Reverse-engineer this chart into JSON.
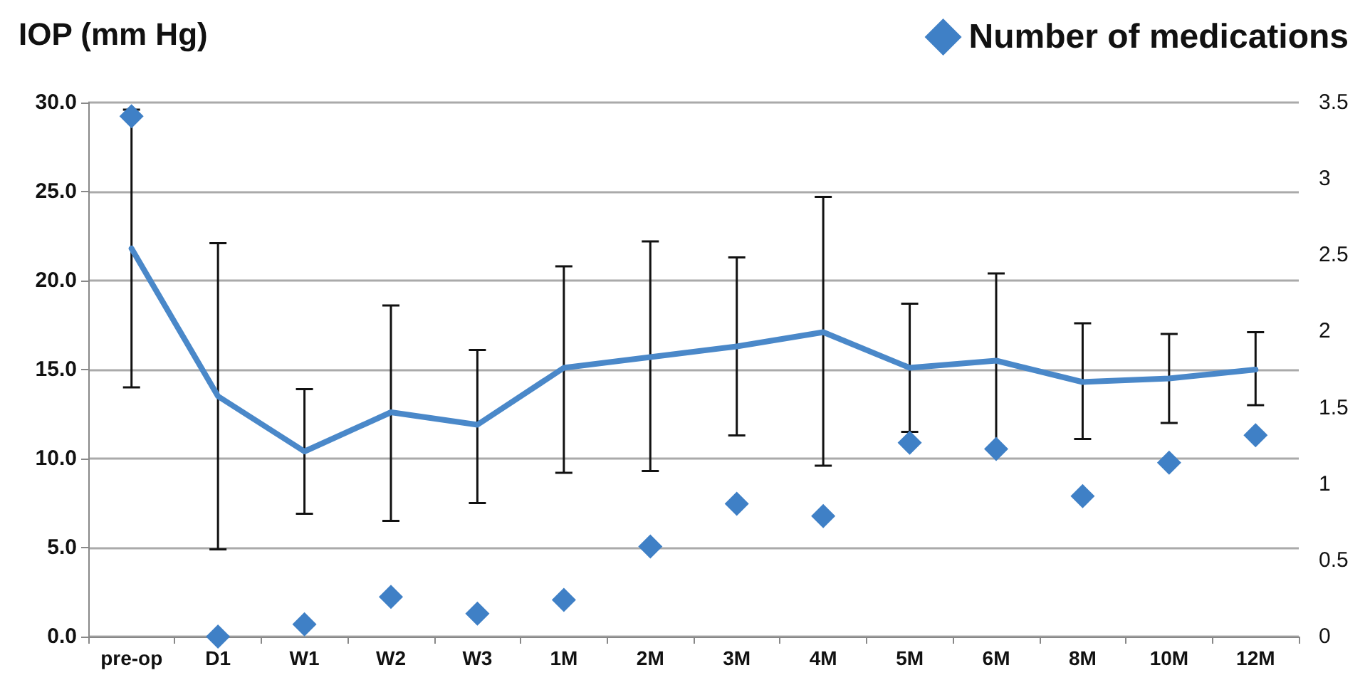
{
  "chart_data": {
    "type": "line",
    "ylabel": "IOP (mm Hg)",
    "categories": [
      "pre-op",
      "D1",
      "W1",
      "W2",
      "W3",
      "1M",
      "2M",
      "3M",
      "4M",
      "5M",
      "6M",
      "8M",
      "10M",
      "12M"
    ],
    "series": [
      {
        "color": "#4a88c9",
        "marker": "none",
        "line_style": "solid",
        "values": [
          21.8,
          13.5,
          10.4,
          12.6,
          11.9,
          15.1,
          15.7,
          16.3,
          17.1,
          15.1,
          15.5,
          14.3,
          14.5,
          15.0
        ],
        "errors": [
          7.8,
          [
            4.9,
            22.1
          ],
          [
            6.9,
            13.9
          ],
          [
            6.5,
            18.6
          ],
          [
            7.5,
            16.1
          ],
          [
            9.2,
            20.8
          ],
          [
            9.3,
            22.2
          ],
          [
            11.3,
            21.3
          ],
          [
            9.6,
            24.7
          ],
          3.6,
          4.9,
          [
            11.1,
            17.6
          ],
          [
            12.0,
            17.0
          ],
          [
            13.0,
            17.1
          ]
        ]
      },
      {
        "type": "scatter",
        "name": "Number of medications",
        "axis": "y2",
        "marker": "diamond",
        "color": "#3f80c6",
        "values": [
          3.41,
          0,
          0.08,
          0.26,
          0.15,
          0.24,
          0.59,
          0.87,
          0.79,
          1.27,
          1.23,
          0.92,
          1.14,
          1.32
        ]
      }
    ],
    "ylim": [
      0,
      30
    ],
    "yticks": [
      {
        "value": 0,
        "label": "0.0"
      },
      {
        "value": 5,
        "label": "5.0"
      },
      {
        "value": 10,
        "label": "10.0"
      },
      {
        "value": 15,
        "label": "15.0"
      },
      {
        "value": 20,
        "label": "20.0"
      },
      {
        "value": 25,
        "label": "25.0"
      },
      {
        "value": 30,
        "label": "30.0"
      }
    ],
    "y2lim": [
      0,
      3.5
    ],
    "y2ticks": [
      0,
      0.5,
      1,
      1.5,
      2,
      2.5,
      3,
      3.5
    ],
    "grid": "y",
    "legend": "top right"
  }
}
